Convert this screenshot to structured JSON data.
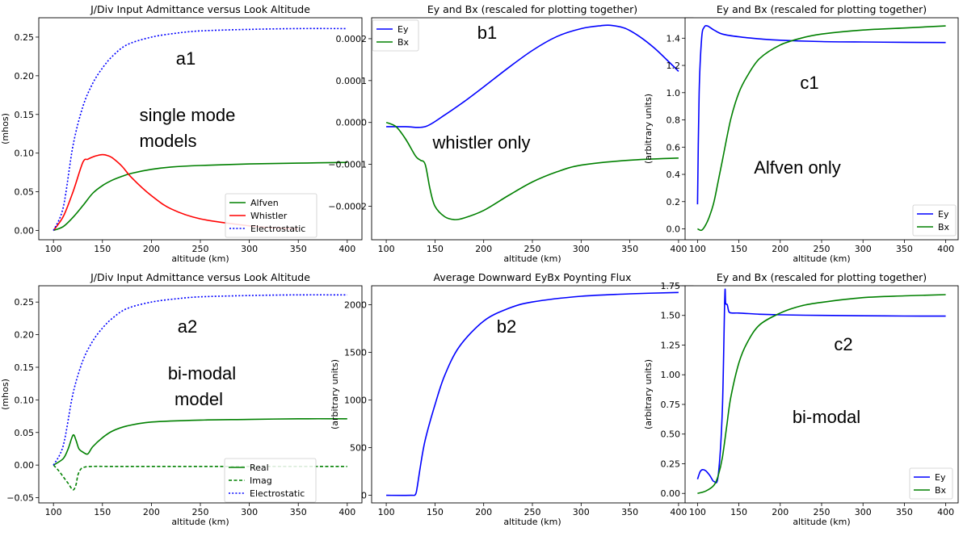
{
  "colors": {
    "alfven": "#008000",
    "whistler": "#ff0000",
    "electrostatic": "#0000ff",
    "ey": "#0000ff",
    "bx": "#008000"
  },
  "chart_data": [
    {
      "id": "a1",
      "type": "line",
      "title": "J/Div Input Admittance versus Look Altitude",
      "xlabel": "altitude (km)",
      "ylabel": "(mhos)",
      "xlim": [
        100,
        400
      ],
      "ylim": [
        -0.012,
        0.275
      ],
      "xticks": [
        100,
        150,
        200,
        250,
        300,
        350,
        400
      ],
      "xtick_labels": [
        "100",
        "150",
        "200",
        "250",
        "300",
        "350",
        "400"
      ],
      "yticks": [
        0.0,
        0.05,
        0.1,
        0.15,
        0.2,
        0.25
      ],
      "ytick_labels": [
        "0.00",
        "0.05",
        "0.10",
        "0.15",
        "0.20",
        "0.25"
      ],
      "legend_position": "lower-right",
      "annotations": [
        "a1",
        "single mode",
        "models"
      ],
      "series": [
        {
          "name": "Alfven",
          "color": "#008000",
          "dash": "solid",
          "x": [
            100,
            110,
            120,
            130,
            140,
            150,
            160,
            170,
            180,
            200,
            220,
            250,
            300,
            350,
            400
          ],
          "y": [
            0.0,
            0.005,
            0.017,
            0.032,
            0.048,
            0.058,
            0.065,
            0.07,
            0.074,
            0.079,
            0.082,
            0.084,
            0.086,
            0.087,
            0.088
          ]
        },
        {
          "name": "Whistler",
          "color": "#ff0000",
          "dash": "solid",
          "x": [
            100,
            110,
            120,
            130,
            135,
            140,
            145,
            150,
            155,
            160,
            170,
            180,
            200,
            220,
            250,
            300,
            330,
            350
          ],
          "y": [
            0.0,
            0.018,
            0.05,
            0.088,
            0.092,
            0.095,
            0.097,
            0.098,
            0.097,
            0.094,
            0.083,
            0.068,
            0.045,
            0.028,
            0.015,
            0.006,
            0.003,
            0.002
          ]
        },
        {
          "name": "Electrostatic",
          "color": "#0000ff",
          "dash": "dotted",
          "x": [
            100,
            110,
            120,
            130,
            140,
            150,
            160,
            175,
            200,
            225,
            250,
            300,
            350,
            400
          ],
          "y": [
            0.0,
            0.03,
            0.11,
            0.16,
            0.19,
            0.21,
            0.225,
            0.24,
            0.25,
            0.255,
            0.258,
            0.26,
            0.261,
            0.261
          ]
        }
      ]
    },
    {
      "id": "b1",
      "type": "line",
      "title": "Ey and Bx (rescaled for plotting together)",
      "xlabel": "altitude (km)",
      "ylabel": "",
      "xlim": [
        100,
        400
      ],
      "ylim": [
        -0.00028,
        0.00025
      ],
      "xticks": [
        100,
        150,
        200,
        250,
        300,
        350,
        400
      ],
      "xtick_labels": [
        "100",
        "150",
        "200",
        "250",
        "300",
        "350",
        "400"
      ],
      "yticks": [
        -0.0002,
        -0.0001,
        0.0,
        0.0001,
        0.0002
      ],
      "ytick_labels": [
        "−0.0002",
        "−0.0001",
        "0.0000",
        "0.0001",
        "0.0002"
      ],
      "legend_position": "upper-left",
      "annotations": [
        "b1",
        "whistler only"
      ],
      "series": [
        {
          "name": "Ey",
          "color": "#0000ff",
          "dash": "solid",
          "x": [
            100,
            120,
            140,
            160,
            180,
            200,
            225,
            250,
            275,
            300,
            320,
            330,
            345,
            360,
            375,
            390,
            400
          ],
          "y": [
            -1e-05,
            -1e-05,
            -1e-05,
            1.8e-05,
            5e-05,
            8.5e-05,
            0.00013,
            0.000172,
            0.000205,
            0.000224,
            0.000231,
            0.000232,
            0.000225,
            0.000205,
            0.000178,
            0.000145,
            0.000122
          ]
        },
        {
          "name": "Bx",
          "color": "#008000",
          "dash": "solid",
          "x": [
            100,
            110,
            120,
            130,
            135,
            140,
            145,
            150,
            160,
            170,
            180,
            200,
            225,
            250,
            275,
            300,
            350,
            400
          ],
          "y": [
            0.0,
            -1e-05,
            -4e-05,
            -8e-05,
            -9e-05,
            -0.0001,
            -0.00016,
            -0.0002,
            -0.000225,
            -0.000232,
            -0.000228,
            -0.00021,
            -0.000175,
            -0.000142,
            -0.000118,
            -0.000102,
            -9e-05,
            -8.5e-05
          ]
        }
      ]
    },
    {
      "id": "c1",
      "type": "line",
      "title": "Ey and Bx (rescaled for plotting together)",
      "xlabel": "altitude (km)",
      "ylabel": "(arbitrary units)",
      "xlim": [
        100,
        400
      ],
      "ylim": [
        -0.08,
        1.55
      ],
      "xticks": [
        100,
        150,
        200,
        250,
        300,
        350,
        400
      ],
      "xtick_labels": [
        "100",
        "150",
        "200",
        "250",
        "300",
        "350",
        "400"
      ],
      "yticks": [
        0.0,
        0.2,
        0.4,
        0.6,
        0.8,
        1.0,
        1.2,
        1.4
      ],
      "ytick_labels": [
        "0.0",
        "0.2",
        "0.4",
        "0.6",
        "0.8",
        "1.0",
        "1.2",
        "1.4"
      ],
      "legend_position": "lower-right",
      "annotations": [
        "c1",
        "Alfven only"
      ],
      "series": [
        {
          "name": "Ey",
          "color": "#0000ff",
          "dash": "solid",
          "x": [
            100,
            102,
            105,
            108,
            112,
            120,
            130,
            150,
            175,
            200,
            250,
            300,
            350,
            400
          ],
          "y": [
            0.18,
            1.0,
            1.4,
            1.48,
            1.49,
            1.46,
            1.43,
            1.41,
            1.395,
            1.385,
            1.375,
            1.372,
            1.37,
            1.368
          ]
        },
        {
          "name": "Bx",
          "color": "#008000",
          "dash": "solid",
          "x": [
            100,
            105,
            110,
            115,
            120,
            125,
            130,
            140,
            150,
            160,
            175,
            200,
            225,
            250,
            300,
            350,
            400
          ],
          "y": [
            0.0,
            -0.01,
            0.03,
            0.1,
            0.2,
            0.35,
            0.5,
            0.8,
            1.0,
            1.12,
            1.25,
            1.35,
            1.4,
            1.43,
            1.46,
            1.475,
            1.49
          ]
        }
      ]
    },
    {
      "id": "a2",
      "type": "line",
      "title": "J/Div Input Admittance versus Look Altitude",
      "xlabel": "altitude (km)",
      "ylabel": "(mhos)",
      "xlim": [
        100,
        400
      ],
      "ylim": [
        -0.058,
        0.275
      ],
      "xticks": [
        100,
        150,
        200,
        250,
        300,
        350,
        400
      ],
      "xtick_labels": [
        "100",
        "150",
        "200",
        "250",
        "300",
        "350",
        "400"
      ],
      "yticks": [
        -0.05,
        0.0,
        0.05,
        0.1,
        0.15,
        0.2,
        0.25
      ],
      "ytick_labels": [
        "−0.05",
        "0.00",
        "0.05",
        "0.10",
        "0.15",
        "0.20",
        "0.25"
      ],
      "legend_position": "lower-right",
      "annotations": [
        "a2",
        "bi-modal",
        "model"
      ],
      "series": [
        {
          "name": "Real",
          "color": "#008000",
          "dash": "solid",
          "x": [
            100,
            110,
            115,
            120,
            123,
            126,
            130,
            135,
            140,
            150,
            160,
            175,
            200,
            250,
            300,
            350,
            400
          ],
          "y": [
            0.0,
            0.01,
            0.025,
            0.046,
            0.038,
            0.025,
            0.02,
            0.017,
            0.028,
            0.042,
            0.052,
            0.06,
            0.066,
            0.069,
            0.07,
            0.071,
            0.071
          ]
        },
        {
          "name": "Imag",
          "color": "#008000",
          "dash": "dashed",
          "x": [
            100,
            105,
            110,
            115,
            120,
            123,
            125,
            128,
            132,
            140,
            160,
            200,
            300,
            400
          ],
          "y": [
            0.0,
            -0.008,
            -0.018,
            -0.028,
            -0.038,
            -0.03,
            -0.015,
            -0.006,
            -0.003,
            -0.002,
            -0.002,
            -0.002,
            -0.002,
            -0.002
          ]
        },
        {
          "name": "Electrostatic",
          "color": "#0000ff",
          "dash": "dotted",
          "x": [
            100,
            110,
            120,
            130,
            140,
            150,
            160,
            175,
            200,
            225,
            250,
            300,
            350,
            400
          ],
          "y": [
            0.0,
            0.03,
            0.11,
            0.16,
            0.19,
            0.21,
            0.225,
            0.24,
            0.25,
            0.255,
            0.258,
            0.26,
            0.261,
            0.261
          ]
        }
      ]
    },
    {
      "id": "b2",
      "type": "line",
      "title": "Average Downward EyBx Poynting Flux",
      "xlabel": "altitude (km)",
      "ylabel": "(arbitrary units)",
      "xlim": [
        100,
        400
      ],
      "ylim": [
        -80,
        2200
      ],
      "xticks": [
        100,
        150,
        200,
        250,
        300,
        350,
        400
      ],
      "xtick_labels": [
        "100",
        "150",
        "200",
        "250",
        "300",
        "350",
        "400"
      ],
      "yticks": [
        0,
        500,
        1000,
        1500,
        2000
      ],
      "ytick_labels": [
        "0",
        "500",
        "1000",
        "1500",
        "2000"
      ],
      "legend_position": "none",
      "annotations": [
        "b2"
      ],
      "series": [
        {
          "name": "",
          "color": "#0000ff",
          "dash": "solid",
          "x": [
            100,
            125,
            130,
            132,
            135,
            140,
            150,
            160,
            175,
            200,
            225,
            250,
            300,
            350,
            400
          ],
          "y": [
            0,
            0,
            10,
            100,
            300,
            580,
            950,
            1260,
            1560,
            1830,
            1960,
            2030,
            2090,
            2115,
            2130
          ]
        }
      ]
    },
    {
      "id": "c2",
      "type": "line",
      "title": "Ey and Bx (rescaled for plotting together)",
      "xlabel": "altitude (km)",
      "ylabel": "(arbitrary units)",
      "xlim": [
        100,
        400
      ],
      "ylim": [
        -0.08,
        1.75
      ],
      "xticks": [
        100,
        150,
        200,
        250,
        300,
        350,
        400
      ],
      "xtick_labels": [
        "100",
        "150",
        "200",
        "250",
        "300",
        "350",
        "400"
      ],
      "yticks": [
        0.0,
        0.25,
        0.5,
        0.75,
        1.0,
        1.25,
        1.5,
        1.75
      ],
      "ytick_labels": [
        "0.00",
        "0.25",
        "0.50",
        "0.75",
        "1.00",
        "1.25",
        "1.50",
        "1.75"
      ],
      "legend_position": "lower-right",
      "annotations": [
        "c2",
        "bi-modal"
      ],
      "series": [
        {
          "name": "Ey",
          "color": "#0000ff",
          "dash": "solid",
          "x": [
            100,
            103,
            106,
            110,
            115,
            120,
            125,
            130,
            133,
            134,
            136,
            138,
            142,
            150,
            175,
            200,
            250,
            300,
            350,
            400
          ],
          "y": [
            0.12,
            0.18,
            0.2,
            0.19,
            0.15,
            0.1,
            0.15,
            0.7,
            1.67,
            1.6,
            1.59,
            1.53,
            1.52,
            1.52,
            1.51,
            1.505,
            1.5,
            1.497,
            1.495,
            1.494
          ]
        },
        {
          "name": "Bx",
          "color": "#008000",
          "dash": "solid",
          "x": [
            100,
            110,
            120,
            125,
            130,
            135,
            140,
            150,
            160,
            175,
            200,
            225,
            250,
            300,
            350,
            400
          ],
          "y": [
            0.0,
            0.02,
            0.07,
            0.15,
            0.3,
            0.55,
            0.8,
            1.1,
            1.27,
            1.42,
            1.52,
            1.58,
            1.61,
            1.65,
            1.665,
            1.675
          ]
        }
      ]
    }
  ]
}
